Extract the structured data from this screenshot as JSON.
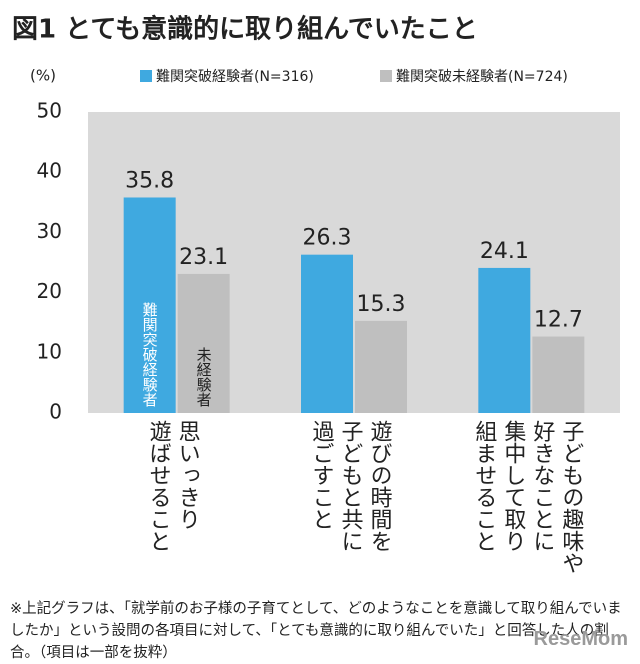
{
  "chart_data": {
    "type": "bar",
    "title": "図1 とても意識的に取り組んでいたこと",
    "y_label": "(%)",
    "categories": [
      "思いっきり\n遊ばせること",
      "遊びの時間を\n子どもと共に\n過ごすこと",
      "子どもの趣味や\n好きなことに\n集中して取り\n組ませること"
    ],
    "series": [
      {
        "name": "難関突破経験者(N=316)",
        "color": "#3fa9e0",
        "values": [
          35.8,
          26.3,
          24.1
        ]
      },
      {
        "name": "難関突破未経験者(N=724)",
        "color": "#bfbfbf",
        "values": [
          23.1,
          15.3,
          12.7
        ]
      }
    ],
    "bar_annotations": [
      "難関突破経験者",
      "未経験者"
    ],
    "ylim": [
      0,
      50
    ],
    "yticks": [
      0,
      10,
      20,
      30,
      40,
      50
    ],
    "grid": false,
    "background": "#d9d9d9"
  },
  "footnote": "※上記グラフは、「就学前のお子様の子育てとして、どのようなことを意識して取り組んでいましたか」という設問の各項目に対して、「とても意識的に取り組んでいた」と回答した人の割合。（項目は一部を抜粋）",
  "watermark": "ReseMom"
}
